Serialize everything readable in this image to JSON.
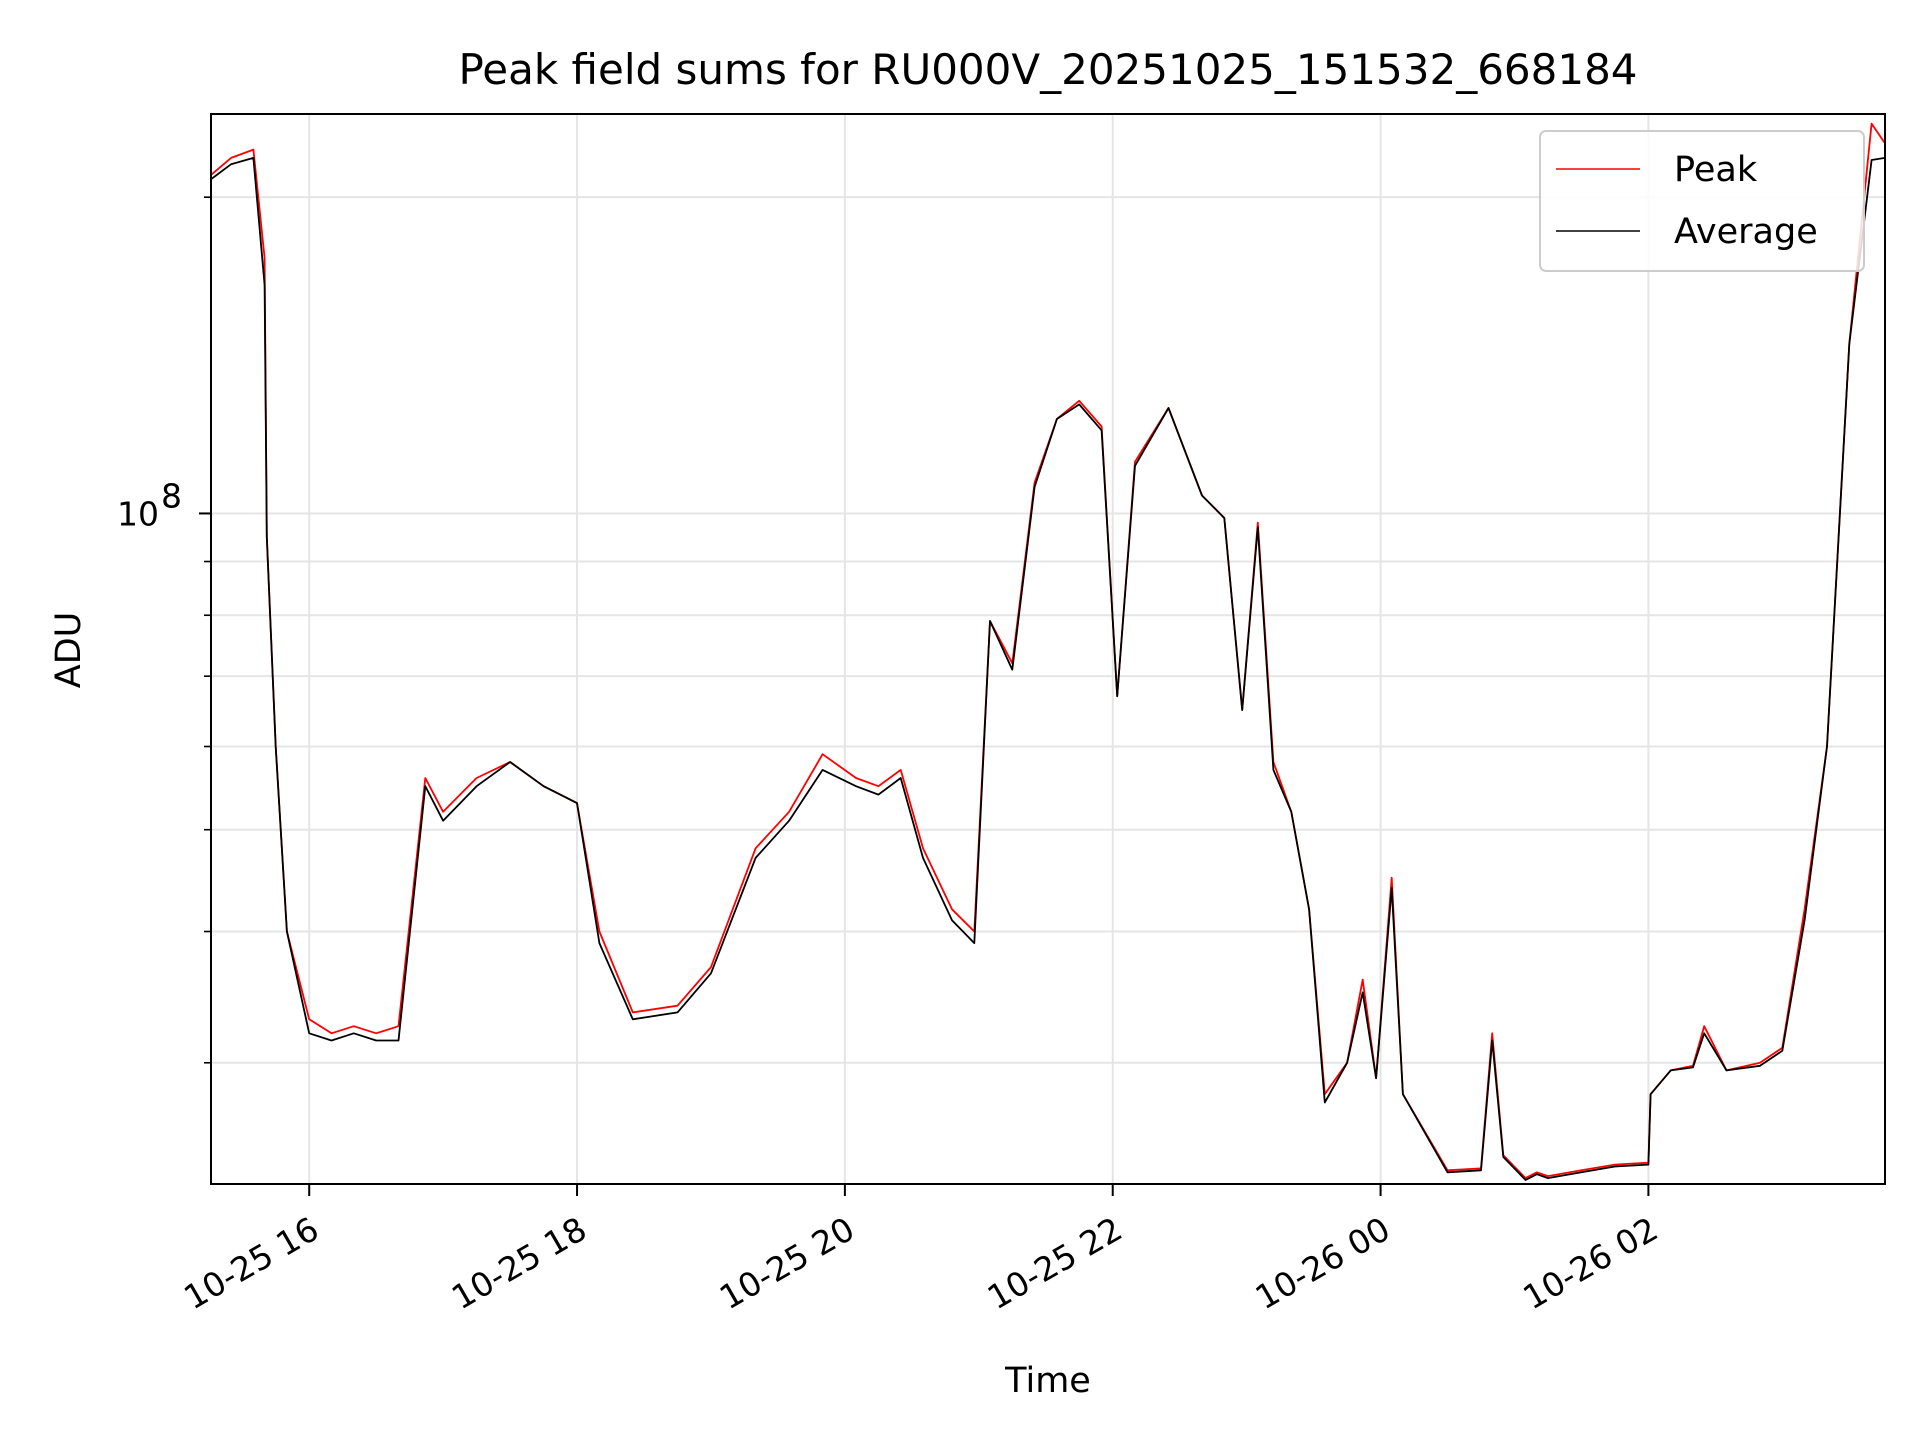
{
  "chart_data": {
    "type": "line",
    "title": "Peak field sums for RU000V_20251025_151532_668184",
    "xlabel": "Time",
    "ylabel": "ADU",
    "yscale": "log",
    "ylim": [
      23000000,
      240000000
    ],
    "xlim": [
      "2025-10-25 15:16",
      "2025-10-26 03:46"
    ],
    "grid": true,
    "legend_position": "upper right",
    "x_tick_labels": [
      "10-25 16",
      "10-25 18",
      "10-25 20",
      "10-25 22",
      "10-26 00",
      "10-26 02"
    ],
    "x_tick_values": [
      "2025-10-25 16:00",
      "2025-10-25 18:00",
      "2025-10-25 20:00",
      "2025-10-25 22:00",
      "2025-10-26 00:00",
      "2025-10-26 02:00"
    ],
    "y_tick_labels": [
      {
        "text": "10",
        "sup": "8"
      }
    ],
    "y_tick_values": [
      100000000
    ],
    "y_minor_tick_values": [
      30000000,
      40000000,
      50000000,
      60000000,
      70000000,
      80000000,
      90000000,
      200000000
    ],
    "x": [
      "2025-10-25 15:16",
      "2025-10-25 15:25",
      "2025-10-25 15:35",
      "2025-10-25 15:40",
      "2025-10-25 15:41",
      "2025-10-25 15:45",
      "2025-10-25 15:50",
      "2025-10-25 16:00",
      "2025-10-25 16:10",
      "2025-10-25 16:20",
      "2025-10-25 16:30",
      "2025-10-25 16:40",
      "2025-10-25 16:52",
      "2025-10-25 17:00",
      "2025-10-25 17:15",
      "2025-10-25 17:30",
      "2025-10-25 17:45",
      "2025-10-25 18:00",
      "2025-10-25 18:10",
      "2025-10-25 18:25",
      "2025-10-25 18:45",
      "2025-10-25 19:00",
      "2025-10-25 19:20",
      "2025-10-25 19:35",
      "2025-10-25 19:50",
      "2025-10-25 20:05",
      "2025-10-25 20:15",
      "2025-10-25 20:25",
      "2025-10-25 20:35",
      "2025-10-25 20:48",
      "2025-10-25 20:58",
      "2025-10-25 21:05",
      "2025-10-25 21:15",
      "2025-10-25 21:25",
      "2025-10-25 21:35",
      "2025-10-25 21:45",
      "2025-10-25 21:55",
      "2025-10-25 22:02",
      "2025-10-25 22:10",
      "2025-10-25 22:25",
      "2025-10-25 22:40",
      "2025-10-25 22:50",
      "2025-10-25 22:58",
      "2025-10-25 23:05",
      "2025-10-25 23:12",
      "2025-10-25 23:20",
      "2025-10-25 23:28",
      "2025-10-25 23:35",
      "2025-10-25 23:45",
      "2025-10-25 23:52",
      "2025-10-25 23:58",
      "2025-10-26 00:05",
      "2025-10-26 00:10",
      "2025-10-26 00:30",
      "2025-10-26 00:45",
      "2025-10-26 00:50",
      "2025-10-26 00:55",
      "2025-10-26 01:05",
      "2025-10-26 01:10",
      "2025-10-26 01:15",
      "2025-10-26 01:30",
      "2025-10-26 01:45",
      "2025-10-26 02:00",
      "2025-10-26 02:01",
      "2025-10-26 02:10",
      "2025-10-26 02:20",
      "2025-10-26 02:25",
      "2025-10-26 02:35",
      "2025-10-26 02:50",
      "2025-10-26 03:00",
      "2025-10-26 03:10",
      "2025-10-26 03:20",
      "2025-10-26 03:30",
      "2025-10-26 03:40",
      "2025-10-26 03:46"
    ],
    "series": [
      {
        "name": "Peak",
        "color": "#ff0000",
        "values": [
          210000000,
          218000000,
          222000000,
          175000000,
          95000000,
          60000000,
          40000000,
          33000000,
          32000000,
          32500000,
          32000000,
          32500000,
          56000000,
          52000000,
          56000000,
          58000000,
          55000000,
          53000000,
          40000000,
          33500000,
          34000000,
          37000000,
          48000000,
          52000000,
          59000000,
          56000000,
          55000000,
          57000000,
          48000000,
          42000000,
          40000000,
          79000000,
          72000000,
          107000000,
          123000000,
          128000000,
          121000000,
          67000000,
          112000000,
          126000000,
          104000000,
          99000000,
          65000000,
          98000000,
          58000000,
          52000000,
          42000000,
          28000000,
          30000000,
          36000000,
          29000000,
          45000000,
          28000000,
          23700000,
          23800000,
          32000000,
          24500000,
          23300000,
          23600000,
          23400000,
          23700000,
          24000000,
          24100000,
          28000000,
          29500000,
          29800000,
          32500000,
          29500000,
          30000000,
          31000000,
          42000000,
          60000000,
          145000000,
          235000000,
          225000000
        ]
      },
      {
        "name": "Average",
        "color": "#000000",
        "values": [
          208000000,
          215000000,
          218000000,
          165000000,
          95000000,
          60000000,
          40000000,
          32000000,
          31500000,
          32000000,
          31500000,
          31500000,
          55000000,
          51000000,
          55000000,
          58000000,
          55000000,
          53000000,
          39000000,
          33000000,
          33500000,
          36500000,
          47000000,
          51000000,
          57000000,
          55000000,
          54000000,
          56000000,
          47000000,
          41000000,
          39000000,
          79000000,
          71000000,
          106000000,
          123000000,
          127000000,
          120000000,
          67000000,
          111000000,
          126000000,
          104000000,
          99000000,
          65000000,
          97000000,
          57000000,
          52000000,
          42000000,
          27500000,
          30000000,
          35000000,
          29000000,
          44000000,
          28000000,
          23600000,
          23700000,
          31500000,
          24400000,
          23200000,
          23500000,
          23300000,
          23600000,
          23900000,
          24000000,
          28000000,
          29500000,
          29700000,
          32000000,
          29500000,
          29800000,
          30800000,
          41000000,
          60000000,
          145000000,
          217000000,
          218000000
        ]
      }
    ]
  }
}
